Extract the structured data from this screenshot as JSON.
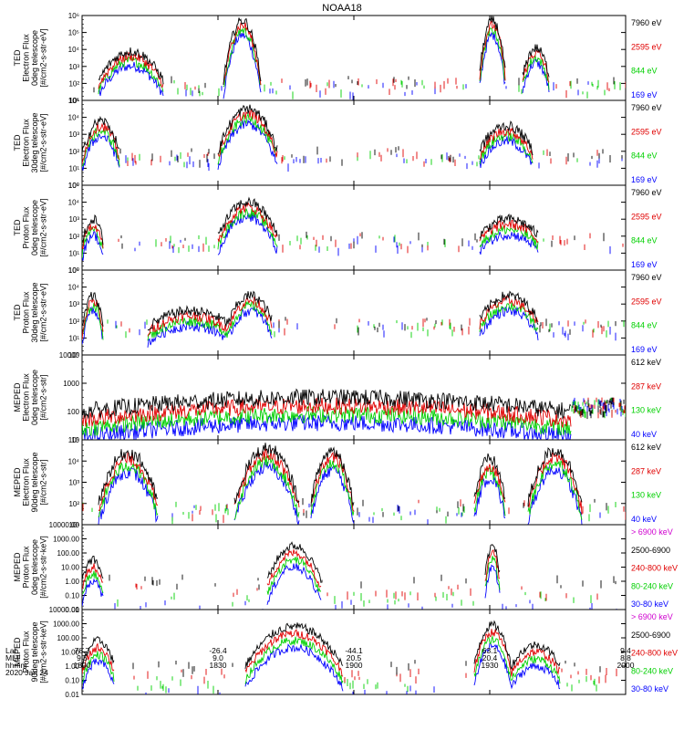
{
  "title": "NOAA18",
  "footer": {
    "row_labels": [
      "Lat",
      "MLT",
      "hhmm"
    ],
    "date": "2020 Jan 24",
    "columns": [
      {
        "lat": "78.7",
        "mlt": "9.5",
        "hhmm": "1800"
      },
      {
        "lat": "-26.4",
        "mlt": "9.0",
        "hhmm": "1830"
      },
      {
        "lat": "-44.1",
        "mlt": "20.5",
        "hhmm": "1900"
      },
      {
        "lat": "63.1",
        "mlt": "20.4",
        "hhmm": "1930"
      },
      {
        "lat": "9.4",
        "mlt": "8.8",
        "hhmm": "2000"
      }
    ]
  },
  "colors": {
    "black": "#000000",
    "red": "#e00000",
    "green": "#00d000",
    "blue": "#0000ff",
    "magenta": "#d000d0"
  },
  "chart_data": [
    {
      "type": "line",
      "ylabel": [
        "TED",
        "Electron Flux",
        "0deg telescope",
        "[#/cm2-s-str-eV]"
      ],
      "ytick_labels": [
        "10⁶",
        "10⁵",
        "10⁴",
        "10³",
        "10²",
        "10¹"
      ],
      "log_range": [
        0.8,
        6
      ],
      "legend": [
        {
          "label": "7960 eV",
          "color": "black"
        },
        {
          "label": "2595 eV",
          "color": "red"
        },
        {
          "label": "844 eV",
          "color": "green"
        },
        {
          "label": "169 eV",
          "color": "blue"
        }
      ],
      "bursts": [
        {
          "start": 0.03,
          "end": 0.15,
          "peak": 3.8,
          "base": 2.0
        },
        {
          "start": 0.26,
          "end": 0.33,
          "peak": 5.7,
          "base": 2.0
        },
        {
          "start": 0.73,
          "end": 0.78,
          "peak": 5.7,
          "base": 2.2
        },
        {
          "start": 0.81,
          "end": 0.86,
          "peak": 4.0,
          "base": 2.2
        }
      ]
    },
    {
      "type": "line",
      "ylabel": [
        "TED",
        "Electron Flux",
        "30deg telescope",
        "[#/cm2-s-str-eV]"
      ],
      "ytick_labels": [
        "10⁵",
        "10⁴",
        "10³",
        "10²",
        "10¹",
        "10⁰"
      ],
      "log_range": [
        0,
        5
      ],
      "legend": [
        {
          "label": "7960 eV",
          "color": "black"
        },
        {
          "label": "2595 eV",
          "color": "red"
        },
        {
          "label": "844 eV",
          "color": "green"
        },
        {
          "label": "169 eV",
          "color": "blue"
        }
      ],
      "bursts": [
        {
          "start": 0.0,
          "end": 0.07,
          "peak": 3.8,
          "base": 1.8
        },
        {
          "start": 0.25,
          "end": 0.36,
          "peak": 4.5,
          "base": 2.0
        },
        {
          "start": 0.73,
          "end": 0.83,
          "peak": 3.5,
          "base": 2.0
        }
      ]
    },
    {
      "type": "line",
      "ylabel": [
        "TED",
        "Proton Flux",
        "0deg telescope",
        "[#/cm2-s-str-eV]"
      ],
      "ytick_labels": [
        "10⁵",
        "10⁴",
        "10³",
        "10²",
        "10¹",
        "10⁰"
      ],
      "log_range": [
        0,
        5
      ],
      "legend": [
        {
          "label": "7960 eV",
          "color": "black"
        },
        {
          "label": "2595 eV",
          "color": "red"
        },
        {
          "label": "844 eV",
          "color": "green"
        },
        {
          "label": "169 eV",
          "color": "blue"
        }
      ],
      "bursts": [
        {
          "start": 0.0,
          "end": 0.04,
          "peak": 3.0,
          "base": 1.5
        },
        {
          "start": 0.25,
          "end": 0.36,
          "peak": 4.0,
          "base": 2.0
        },
        {
          "start": 0.73,
          "end": 0.84,
          "peak": 3.0,
          "base": 2.0
        }
      ]
    },
    {
      "type": "line",
      "ylabel": [
        "TED",
        "Proton Flux",
        "30deg telescope",
        "[#/cm2-s-str-eV]"
      ],
      "ytick_labels": [
        "10⁵",
        "10⁴",
        "10³",
        "10²",
        "10¹",
        "10⁰"
      ],
      "log_range": [
        0,
        5
      ],
      "legend": [
        {
          "label": "7960 eV",
          "color": "black"
        },
        {
          "label": "2595 eV",
          "color": "red"
        },
        {
          "label": "844 eV",
          "color": "green"
        },
        {
          "label": "169 eV",
          "color": "blue"
        }
      ],
      "bursts": [
        {
          "start": 0.0,
          "end": 0.04,
          "peak": 3.5,
          "base": 1.5
        },
        {
          "start": 0.12,
          "end": 0.28,
          "peak": 2.6,
          "base": 1.6
        },
        {
          "start": 0.27,
          "end": 0.35,
          "peak": 3.5,
          "base": 2.0
        },
        {
          "start": 0.73,
          "end": 0.84,
          "peak": 3.5,
          "base": 2.0
        }
      ]
    },
    {
      "type": "line",
      "ylabel": [
        "MEPED",
        "Electron Flux",
        "0deg telescope",
        "[#/cm2-s-str]"
      ],
      "ytick_labels": [
        "10000",
        "1000",
        "100",
        "10"
      ],
      "log_range": [
        1,
        4
      ],
      "legend": [
        {
          "label": "612 keV",
          "color": "black"
        },
        {
          "label": "287 keV",
          "color": "red"
        },
        {
          "label": "130 keV",
          "color": "green"
        },
        {
          "label": "40 keV",
          "color": "blue"
        }
      ],
      "bursts": [
        {
          "start": 0.0,
          "end": 0.9,
          "peak": 2.5,
          "base": 2.0
        }
      ]
    },
    {
      "type": "line",
      "ylabel": [
        "MEPED",
        "Electron Flux",
        "90deg telescope",
        "[#/cm2-s-str]"
      ],
      "ytick_labels": [
        "10⁵",
        "10⁴",
        "10³",
        "10²",
        "10¹"
      ],
      "log_range": [
        1,
        5
      ],
      "legend": [
        {
          "label": "612 keV",
          "color": "black"
        },
        {
          "label": "287 keV",
          "color": "red"
        },
        {
          "label": "130 keV",
          "color": "green"
        },
        {
          "label": "40 keV",
          "color": "blue"
        }
      ],
      "bursts": [
        {
          "start": 0.03,
          "end": 0.14,
          "peak": 4.4,
          "base": 2.0
        },
        {
          "start": 0.28,
          "end": 0.4,
          "peak": 4.6,
          "base": 2.0
        },
        {
          "start": 0.42,
          "end": 0.5,
          "peak": 4.5,
          "base": 2.0
        },
        {
          "start": 0.72,
          "end": 0.78,
          "peak": 4.1,
          "base": 2.0
        },
        {
          "start": 0.82,
          "end": 0.92,
          "peak": 4.5,
          "base": 2.0
        }
      ]
    },
    {
      "type": "line",
      "ylabel": [
        "MEPED",
        "Proton Flux",
        "0deg telescope",
        "[#/cm2-s-str-keV]"
      ],
      "ytick_labels": [
        "10000.00",
        "1000.00",
        "100.00",
        "10.00",
        "1.00",
        "0.10",
        "0.01"
      ],
      "log_range": [
        -2,
        4
      ],
      "legend": [
        {
          "label": "> 6900 keV",
          "color": "magenta"
        },
        {
          "label": "2500-6900",
          "color": "black"
        },
        {
          "label": "240-800 keV",
          "color": "red"
        },
        {
          "label": "80-240 keV",
          "color": "green"
        },
        {
          "label": "30-80 keV",
          "color": "blue"
        }
      ],
      "bursts": [
        {
          "start": 0.0,
          "end": 0.04,
          "peak": 2.0,
          "base": 0.5
        },
        {
          "start": 0.34,
          "end": 0.44,
          "peak": 3.0,
          "base": 0.5
        },
        {
          "start": 0.74,
          "end": 0.77,
          "peak": 3.0,
          "base": 0.5
        }
      ]
    },
    {
      "type": "line",
      "ylabel": [
        "MEPED",
        "Proton Flux",
        "90deg telescope",
        "[#/cm2-s-str-keV]"
      ],
      "ytick_labels": [
        "10000.00",
        "1000.00",
        "100.00",
        "10.00",
        "1.00",
        "0.10",
        "0.01"
      ],
      "log_range": [
        -2,
        4
      ],
      "legend": [
        {
          "label": "> 6900 keV",
          "color": "magenta"
        },
        {
          "label": "2500-6900",
          "color": "black"
        },
        {
          "label": "240-800 keV",
          "color": "red"
        },
        {
          "label": "80-240 keV",
          "color": "green"
        },
        {
          "label": "30-80 keV",
          "color": "blue"
        }
      ],
      "bursts": [
        {
          "start": 0.0,
          "end": 0.06,
          "peak": 2.3,
          "base": 0.5
        },
        {
          "start": 0.3,
          "end": 0.48,
          "peak": 3.3,
          "base": 0.5
        },
        {
          "start": 0.72,
          "end": 0.79,
          "peak": 3.4,
          "base": 0.5
        },
        {
          "start": 0.79,
          "end": 0.88,
          "peak": 2.0,
          "base": 0.5
        }
      ]
    }
  ]
}
